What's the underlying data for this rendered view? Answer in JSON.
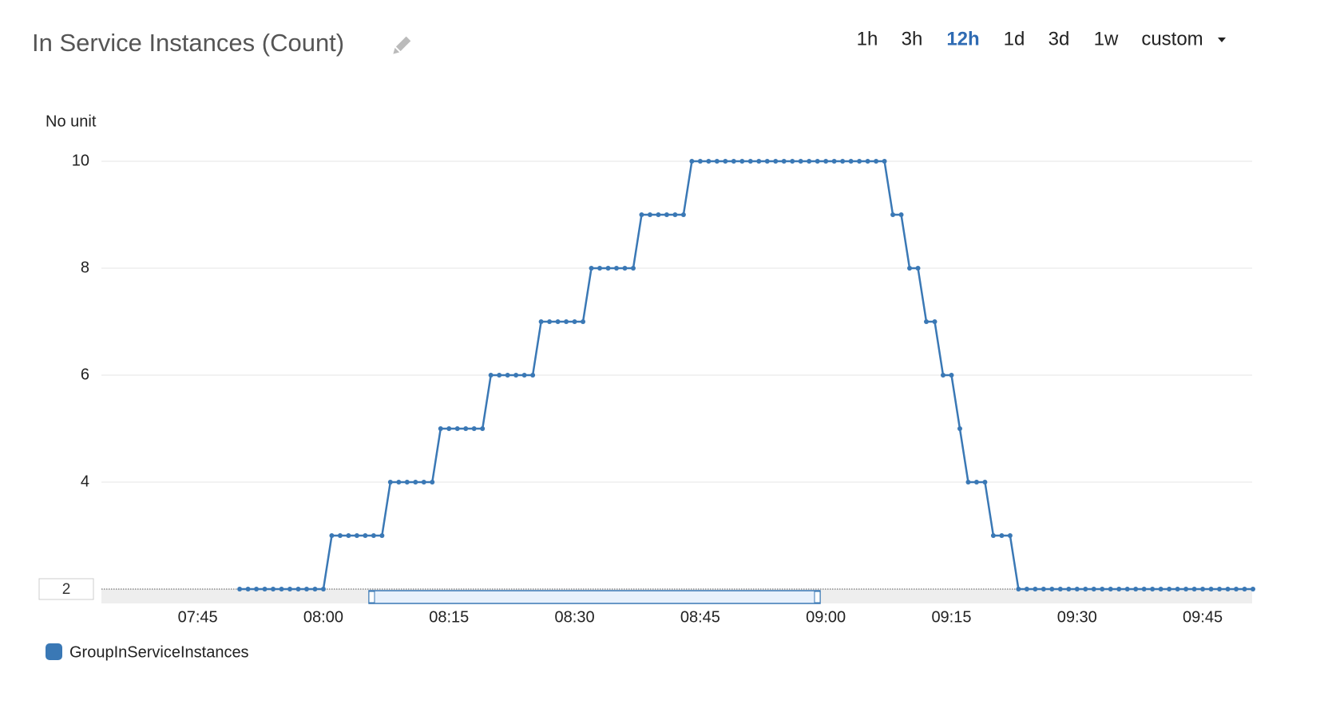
{
  "chart_data": {
    "type": "line",
    "title": "In Service Instances (Count)",
    "ranges": [
      "1h",
      "3h",
      "12h",
      "1d",
      "3d",
      "1w",
      "custom"
    ],
    "active_range": "12h",
    "y_unit_label": "No unit",
    "x": [
      "07:50",
      "07:51",
      "07:52",
      "07:53",
      "07:54",
      "07:55",
      "07:56",
      "07:57",
      "07:58",
      "07:59",
      "08:00",
      "08:01",
      "08:02",
      "08:03",
      "08:04",
      "08:05",
      "08:06",
      "08:07",
      "08:08",
      "08:09",
      "08:10",
      "08:11",
      "08:12",
      "08:13",
      "08:14",
      "08:15",
      "08:16",
      "08:17",
      "08:18",
      "08:19",
      "08:20",
      "08:21",
      "08:22",
      "08:23",
      "08:24",
      "08:25",
      "08:26",
      "08:27",
      "08:28",
      "08:29",
      "08:30",
      "08:31",
      "08:32",
      "08:33",
      "08:34",
      "08:35",
      "08:36",
      "08:37",
      "08:38",
      "08:39",
      "08:40",
      "08:41",
      "08:42",
      "08:43",
      "08:44",
      "08:45",
      "08:46",
      "08:47",
      "08:48",
      "08:49",
      "08:50",
      "08:51",
      "08:52",
      "08:53",
      "08:54",
      "08:55",
      "08:56",
      "08:57",
      "08:58",
      "08:59",
      "09:00",
      "09:01",
      "09:02",
      "09:03",
      "09:04",
      "09:05",
      "09:06",
      "09:07",
      "09:08",
      "09:09",
      "09:10",
      "09:11",
      "09:12",
      "09:13",
      "09:14",
      "09:15",
      "09:16",
      "09:17",
      "09:18",
      "09:19",
      "09:20",
      "09:21",
      "09:22",
      "09:23",
      "09:24",
      "09:25",
      "09:26",
      "09:27",
      "09:28",
      "09:29",
      "09:30",
      "09:31",
      "09:32",
      "09:33",
      "09:34",
      "09:35",
      "09:36",
      "09:37",
      "09:38",
      "09:39",
      "09:40",
      "09:41",
      "09:42",
      "09:43",
      "09:44",
      "09:45",
      "09:46",
      "09:47",
      "09:48",
      "09:49",
      "09:50",
      "09:51"
    ],
    "series": [
      {
        "name": "GroupInServiceInstances",
        "color": "#3a78b5",
        "values": [
          2,
          2,
          2,
          2,
          2,
          2,
          2,
          2,
          2,
          2,
          2,
          3,
          3,
          3,
          3,
          3,
          3,
          3,
          4,
          4,
          4,
          4,
          4,
          4,
          5,
          5,
          5,
          5,
          5,
          5,
          6,
          6,
          6,
          6,
          6,
          6,
          7,
          7,
          7,
          7,
          7,
          7,
          8,
          8,
          8,
          8,
          8,
          8,
          9,
          9,
          9,
          9,
          9,
          9,
          10,
          10,
          10,
          10,
          10,
          10,
          10,
          10,
          10,
          10,
          10,
          10,
          10,
          10,
          10,
          10,
          10,
          10,
          10,
          10,
          10,
          10,
          10,
          10,
          9,
          9,
          8,
          8,
          7,
          7,
          6,
          6,
          5,
          4,
          4,
          4,
          3,
          3,
          3,
          2,
          2,
          2,
          2,
          2,
          2,
          2,
          2,
          2,
          2,
          2,
          2,
          2,
          2,
          2,
          2,
          2,
          2,
          2,
          2,
          2,
          2,
          2,
          2,
          2,
          2,
          2,
          2,
          2
        ]
      }
    ],
    "xlim": [
      "07:34",
      "09:51"
    ],
    "xticks": [
      "07:45",
      "08:00",
      "08:15",
      "08:30",
      "08:45",
      "09:00",
      "09:15",
      "09:30",
      "09:45"
    ],
    "ylim": [
      2,
      10.5
    ],
    "yticks": [
      2,
      4,
      6,
      8,
      10
    ],
    "grid": true
  }
}
